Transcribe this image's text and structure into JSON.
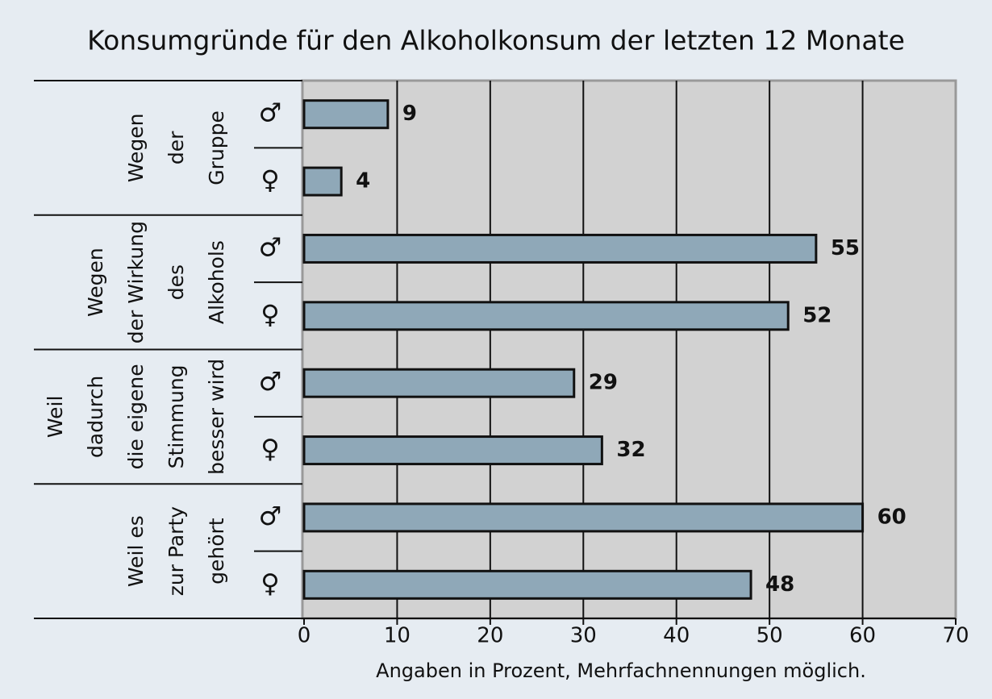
{
  "chart_data": {
    "type": "bar",
    "title": "Konsumgründe für den Alkoholkonsum der letzten 12 Monate",
    "groups": [
      {
        "label": [
          "Wegen",
          "der",
          "Gruppe"
        ]
      },
      {
        "label": [
          "Wegen",
          "der Wirkung",
          "des",
          "Alkohols"
        ]
      },
      {
        "label": [
          "Weil",
          "dadurch",
          "die eigene",
          "Stimmung",
          "besser wird"
        ]
      },
      {
        "label": [
          "Weil es",
          "zur Party",
          "gehört"
        ]
      }
    ],
    "categories": [
      "♂",
      "♀",
      "♂",
      "♀",
      "♂",
      "♀",
      "♂",
      "♀"
    ],
    "values": [
      9,
      4,
      55,
      52,
      29,
      32,
      60,
      48
    ],
    "color": "#8fa8b8",
    "xlim": [
      0,
      70
    ],
    "xticks": [
      0,
      10,
      20,
      30,
      40,
      50,
      60,
      70
    ],
    "xlabel": "Angaben in Prozent, Mehrfachnennungen möglich.",
    "grid": true
  }
}
